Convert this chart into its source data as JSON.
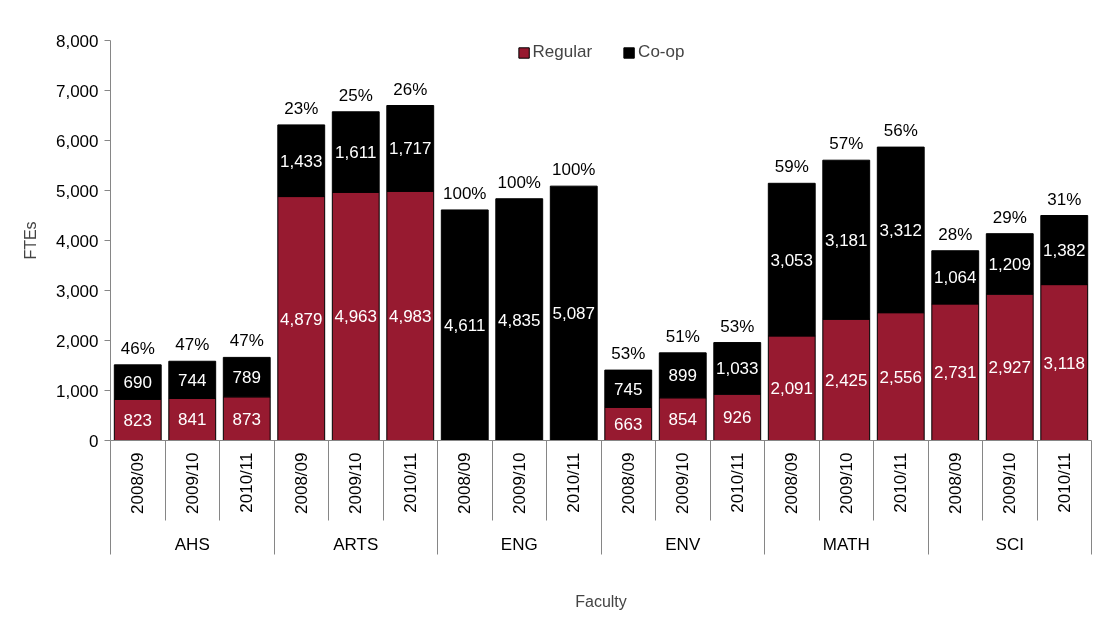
{
  "chart_data": {
    "type": "bar",
    "stacked": true,
    "xlabel": "Faculty",
    "ylabel": "FTEs",
    "categories": [
      "2008/09",
      "2009/10",
      "2010/11",
      "2008/09",
      "2009/10",
      "2010/11",
      "2008/09",
      "2009/10",
      "2010/11",
      "2008/09",
      "2009/10",
      "2010/11",
      "2008/09",
      "2009/10",
      "2010/11",
      "2008/09",
      "2009/10",
      "2010/11"
    ],
    "series": [
      {
        "name": "Regular",
        "color": "#971a30",
        "values": [
          823,
          841,
          873,
          4879,
          4963,
          4983,
          null,
          null,
          null,
          663,
          854,
          926,
          2091,
          2425,
          2556,
          2731,
          2927,
          3118
        ],
        "value_labels": [
          "823",
          "841",
          "873",
          "4,879",
          "4,963",
          "4,983",
          null,
          null,
          null,
          "663",
          "854",
          "926",
          "2,091",
          "2,425",
          "2,556",
          "2,731",
          "2,927",
          "3,118"
        ]
      },
      {
        "name": "Co-op",
        "color": "#000000",
        "values": [
          690,
          744,
          789,
          1433,
          1611,
          1717,
          4611,
          4835,
          5087,
          745,
          899,
          1033,
          3053,
          3181,
          3312,
          1064,
          1209,
          1382
        ],
        "value_labels": [
          "690",
          "744",
          "789",
          "1,433",
          "1,611",
          "1,717",
          "4,611",
          "4,835",
          "5,087",
          "745",
          "899",
          "1,033",
          "3,053",
          "3,181",
          "3,312",
          "1,064",
          "1,209",
          "1,382"
        ]
      }
    ],
    "annotations": [
      "AHS",
      "ARTS",
      "ENG",
      "ENV",
      "MATH",
      "SCI",
      "46%",
      "47%",
      "47%",
      "23%",
      "25%",
      "26%",
      "100%",
      "100%",
      "100%",
      "53%",
      "51%",
      "53%",
      "59%",
      "57%",
      "56%",
      "28%",
      "29%",
      "31%"
    ],
    "legend": "top",
    "ylim": [
      0,
      8000
    ],
    "yticks": [
      0,
      {
        "value": 1000,
        "label": "1,000"
      },
      {
        "value": 2000,
        "label": "2,000"
      },
      {
        "value": 3000,
        "label": "3,000"
      },
      {
        "value": 4000,
        "label": "4,000"
      },
      {
        "value": 5000,
        "label": "5,000"
      },
      {
        "value": 6000,
        "label": "6,000"
      },
      {
        "value": 7000,
        "label": "7,000"
      },
      {
        "value": 8000,
        "label": "8,000"
      }
    ]
  }
}
